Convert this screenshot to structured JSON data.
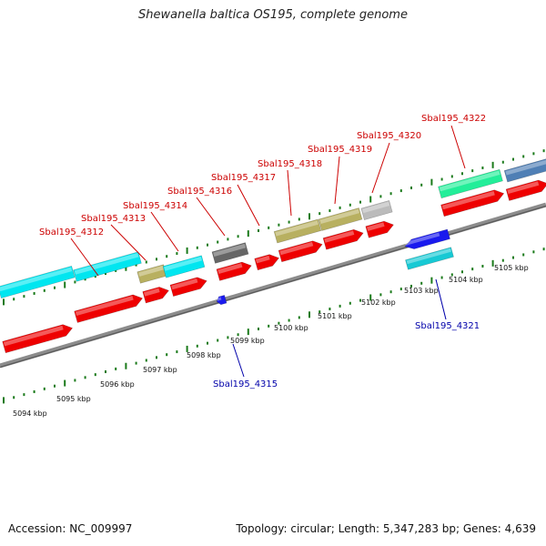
{
  "title": "Shewanella baltica OS195, complete genome",
  "footer": {
    "accession": "Accession: NC_009997",
    "summary": "Topology: circular; Length: 5,347,283 bp; Genes: 4,639"
  },
  "colors": {
    "forward_label": "#cc0000",
    "reverse_label": "#0000aa",
    "cds_red": "#ee0000",
    "tick_green": "#1a7a1a",
    "backbone": "#8c8c8c"
  },
  "kbp_ticks": [
    {
      "label": "5094 kbp"
    },
    {
      "label": "5095 kbp"
    },
    {
      "label": "5096 kbp"
    },
    {
      "label": "5097 kbp"
    },
    {
      "label": "5098 kbp"
    },
    {
      "label": "5099 kbp"
    },
    {
      "label": "5100 kbp"
    },
    {
      "label": "5101 kbp"
    },
    {
      "label": "5102 kbp"
    },
    {
      "label": "5103 kbp"
    },
    {
      "label": "5104 kbp"
    },
    {
      "label": "5105 kbp"
    }
  ],
  "forward_genes": [
    {
      "label": "Sbal195_4312"
    },
    {
      "label": "Sbal195_4313"
    },
    {
      "label": "Sbal195_4314"
    },
    {
      "label": "Sbal195_4316"
    },
    {
      "label": "Sbal195_4317"
    },
    {
      "label": "Sbal195_4318"
    },
    {
      "label": "Sbal195_4319"
    },
    {
      "label": "Sbal195_4320"
    },
    {
      "label": "Sbal195_4322"
    }
  ],
  "reverse_genes": [
    {
      "label": "Sbal195_4315"
    },
    {
      "label": "Sbal195_4321"
    }
  ]
}
